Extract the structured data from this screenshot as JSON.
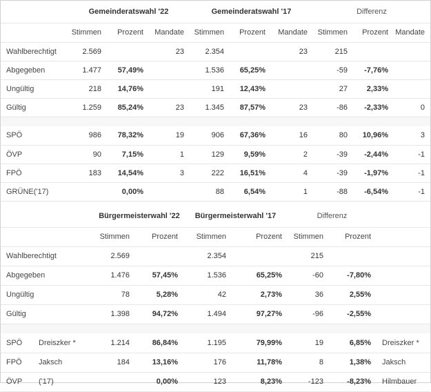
{
  "gemeinderat": {
    "head": {
      "g22": "Gemeinderatswahl '22",
      "g17": "Gemeinderatswahl '17",
      "diff": "Differenz"
    },
    "sub": {
      "stimmen": "Stimmen",
      "prozent": "Prozent",
      "mandate": "Mandate"
    },
    "rows": [
      {
        "label": "Wahlberechtigt",
        "s22": "2.569",
        "p22": "",
        "m22": "23",
        "s17": "2.354",
        "p17": "",
        "m17": "23",
        "sd": "215",
        "pd": "",
        "md": ""
      },
      {
        "label": "Abgegeben",
        "s22": "1.477",
        "p22": "57,49%",
        "m22": "",
        "s17": "1.536",
        "p17": "65,25%",
        "m17": "",
        "sd": "-59",
        "pd": "-7,76%",
        "md": ""
      },
      {
        "label": "Ungültig",
        "s22": "218",
        "p22": "14,76%",
        "m22": "",
        "s17": "191",
        "p17": "12,43%",
        "m17": "",
        "sd": "27",
        "pd": "2,33%",
        "md": ""
      },
      {
        "label": "Gültig",
        "s22": "1.259",
        "p22": "85,24%",
        "m22": "23",
        "s17": "1.345",
        "p17": "87,57%",
        "m17": "23",
        "sd": "-86",
        "pd": "-2,33%",
        "md": "0"
      }
    ],
    "parties": [
      {
        "label": "SPÖ",
        "s22": "986",
        "p22": "78,32%",
        "m22": "19",
        "s17": "906",
        "p17": "67,36%",
        "m17": "16",
        "sd": "80",
        "pd": "10,96%",
        "md": "3"
      },
      {
        "label": "ÖVP",
        "s22": "90",
        "p22": "7,15%",
        "m22": "1",
        "s17": "129",
        "p17": "9,59%",
        "m17": "2",
        "sd": "-39",
        "pd": "-2,44%",
        "md": "-1"
      },
      {
        "label": "FPÖ",
        "s22": "183",
        "p22": "14,54%",
        "m22": "3",
        "s17": "222",
        "p17": "16,51%",
        "m17": "4",
        "sd": "-39",
        "pd": "-1,97%",
        "md": "-1"
      },
      {
        "label": "GRÜNE('17)",
        "s22": "",
        "p22": "0,00%",
        "m22": "",
        "s17": "88",
        "p17": "6,54%",
        "m17": "1",
        "sd": "-88",
        "pd": "-6,54%",
        "md": "-1"
      }
    ]
  },
  "buergermeister": {
    "head": {
      "b22": "Bürgermeisterwahl '22",
      "b17": "Bürgermeisterwahl '17",
      "diff": "Differenz"
    },
    "sub": {
      "stimmen": "Stimmen",
      "prozent": "Prozent"
    },
    "rows": [
      {
        "label": "Wahlberechtigt",
        "s22": "2.569",
        "p22": "",
        "s17": "2.354",
        "p17": "",
        "sd": "215",
        "pd": ""
      },
      {
        "label": "Abgegeben",
        "s22": "1.476",
        "p22": "57,45%",
        "s17": "1.536",
        "p17": "65,25%",
        "sd": "-60",
        "pd": "-7,80%"
      },
      {
        "label": "Ungültig",
        "s22": "78",
        "p22": "5,28%",
        "s17": "42",
        "p17": "2,73%",
        "sd": "36",
        "pd": "2,55%"
      },
      {
        "label": "Gültig",
        "s22": "1.398",
        "p22": "94,72%",
        "s17": "1.494",
        "p17": "97,27%",
        "sd": "-96",
        "pd": "-2,55%"
      }
    ],
    "parties": [
      {
        "label": "SPÖ",
        "cand": "Dreiszker *",
        "s22": "1.214",
        "p22": "86,84%",
        "s17": "1.195",
        "p17": "79,99%",
        "sd": "19",
        "pd": "6,85%",
        "cand17": "Dreiszker *"
      },
      {
        "label": "FPÖ",
        "cand": "Jaksch",
        "s22": "184",
        "p22": "13,16%",
        "s17": "176",
        "p17": "11,78%",
        "sd": "8",
        "pd": "1,38%",
        "cand17": "Jaksch"
      },
      {
        "label": "ÖVP",
        "cand": "('17)",
        "s22": "",
        "p22": "0,00%",
        "s17": "123",
        "p17": "8,23%",
        "sd": "-123",
        "pd": "-8,23%",
        "cand17": "Hilmbauer"
      }
    ]
  }
}
